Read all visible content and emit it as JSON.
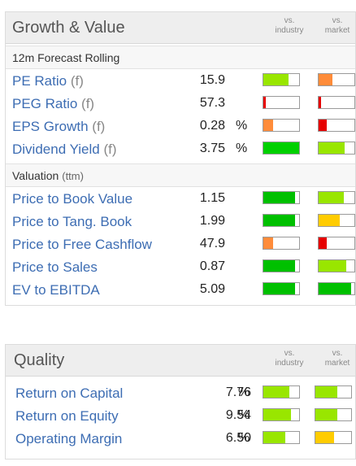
{
  "growth_value": {
    "title": "Growth & Value",
    "col_industry": [
      "vs.",
      "industry"
    ],
    "col_market": [
      "vs.",
      "market"
    ],
    "sections": [
      {
        "title": "12m Forecast Rolling",
        "title_suffix": "",
        "rows": [
          {
            "label": "PE Ratio",
            "suffix": "(f)",
            "value": "15.9",
            "unit": "",
            "industry": {
              "level": 0.7,
              "color": "#99e600"
            },
            "market": {
              "level": 0.38,
              "color": "#ff8c3a"
            }
          },
          {
            "label": "PEG Ratio",
            "suffix": "(f)",
            "value": "57.3",
            "unit": "",
            "industry": {
              "level": 0.07,
              "color": "#e60000"
            },
            "market": {
              "level": 0.07,
              "color": "#e60000"
            }
          },
          {
            "label": "EPS Growth",
            "suffix": "(f)",
            "value": "0.28",
            "unit": "%",
            "industry": {
              "level": 0.28,
              "color": "#ff8c3a"
            },
            "market": {
              "level": 0.22,
              "color": "#e60000"
            }
          },
          {
            "label": "Dividend Yield",
            "suffix": "(f)",
            "value": "3.75",
            "unit": "%",
            "industry": {
              "level": 1.0,
              "color": "#00d000"
            },
            "market": {
              "level": 0.72,
              "color": "#99e600"
            }
          }
        ]
      },
      {
        "title": "Valuation",
        "title_suffix": "(ttm)",
        "rows": [
          {
            "label": "Price to Book Value",
            "suffix": "",
            "value": "1.15",
            "unit": "",
            "industry": {
              "level": 0.88,
              "color": "#00c000"
            },
            "market": {
              "level": 0.7,
              "color": "#99e600"
            }
          },
          {
            "label": "Price to Tang. Book",
            "suffix": "",
            "value": "1.99",
            "unit": "",
            "industry": {
              "level": 0.88,
              "color": "#00c000"
            },
            "market": {
              "level": 0.6,
              "color": "#ffcc00"
            }
          },
          {
            "label": "Price to Free Cashflow",
            "suffix": "",
            "value": "47.9",
            "unit": "",
            "industry": {
              "level": 0.28,
              "color": "#ff8c3a"
            },
            "market": {
              "level": 0.22,
              "color": "#e60000"
            }
          },
          {
            "label": "Price to Sales",
            "suffix": "",
            "value": "0.87",
            "unit": "",
            "industry": {
              "level": 0.88,
              "color": "#00c000"
            },
            "market": {
              "level": 0.78,
              "color": "#99e600"
            }
          },
          {
            "label": "EV to EBITDA",
            "suffix": "",
            "value": "5.09",
            "unit": "",
            "industry": {
              "level": 0.88,
              "color": "#00c000"
            },
            "market": {
              "level": 0.92,
              "color": "#00c000"
            }
          }
        ]
      }
    ]
  },
  "quality": {
    "title": "Quality",
    "col_industry": [
      "vs.",
      "industry"
    ],
    "col_market": [
      "vs.",
      "market"
    ],
    "rows": [
      {
        "label": "Return on Capital",
        "value": "7.76",
        "unit": "%",
        "industry": {
          "level": 0.72,
          "color": "#99e600"
        },
        "market": {
          "level": 0.62,
          "color": "#99e600"
        }
      },
      {
        "label": "Return on Equity",
        "value": "9.54",
        "unit": "%",
        "industry": {
          "level": 0.78,
          "color": "#99e600"
        },
        "market": {
          "level": 0.62,
          "color": "#99e600"
        }
      },
      {
        "label": "Operating Margin",
        "value": "6.50",
        "unit": "%",
        "industry": {
          "level": 0.62,
          "color": "#99e600"
        },
        "market": {
          "level": 0.52,
          "color": "#ffcc00"
        }
      }
    ]
  }
}
